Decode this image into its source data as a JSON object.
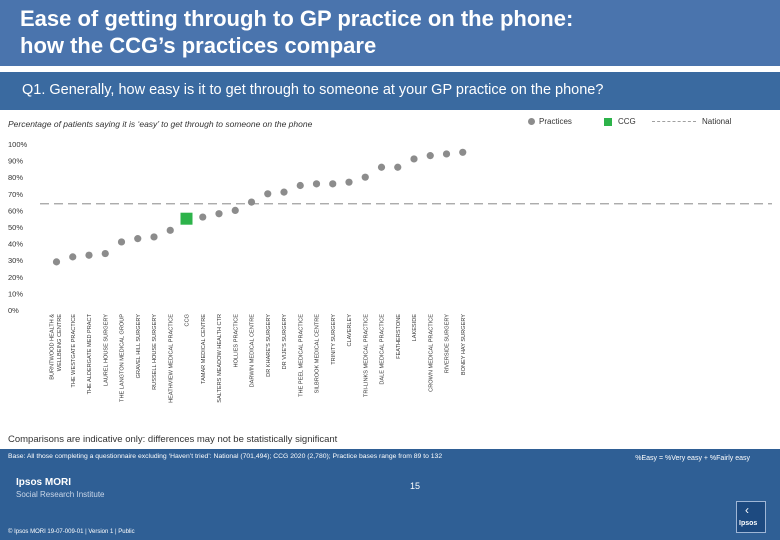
{
  "header": {
    "title": "Ease of getting through to GP practice on the phone:\nhow the CCG’s practices compare"
  },
  "question": "Q1. Generally, how easy is it to get through to someone at your GP practice on the phone?",
  "subtitle": "Percentage of patients saying it is ‘easy’ to get through to someone on the phone",
  "legend": {
    "practices": "Practices",
    "ccg": "CCG",
    "national": "National"
  },
  "chart_data": {
    "type": "scatter",
    "title": "Percentage of patients saying it is ‘easy’ to get through to someone on the phone",
    "y_tick_labels": [
      "0%",
      "10%",
      "20%",
      "30%",
      "40%",
      "50%",
      "60%",
      "70%",
      "80%",
      "90%",
      "100%"
    ],
    "ylim": [
      0,
      100
    ],
    "national_value": 64,
    "categories": [
      "BURNTWOOD HEALTH & WELLBEING CENTRE",
      "THE WESTGATE PRACTICE",
      "THE ALDERGATE MED PRACT",
      "LAUREL HOUSE SURGERY",
      "THE LANGTON MEDICAL GROUP",
      "GRAVEL HILL SURGERY",
      "RUSSELL HOUSE SURGERY",
      "HEATHVIEW MEDICAL PRACTICE",
      "CCG",
      "TAMAR MEDICAL CENTRE",
      "SALTERS MEADOW HEALTH CTR",
      "HOLLIES PRACTICE",
      "DARWIN MEDICAL CENTRE",
      "DR KHARE'S SURGERY",
      "DR VIJE'S SURGERY",
      "THE PEEL MEDICAL PRACTICE",
      "SILBROOK MEDICAL CENTRE",
      "TRINITY SURGERY",
      "CLAVERLEY",
      "TRI-LINKS MEDICAL PRACTICE",
      "DALE MEDICAL PRACTICE",
      "FEATHERSTONE",
      "LAKESIDE",
      "CROWN MEDICAL PRACTICE",
      "RIVERSIDE SURGERY",
      "BONEY HAY SURGERY"
    ],
    "values": [
      29,
      32,
      33,
      34,
      41,
      43,
      44,
      48,
      55,
      56,
      58,
      60,
      65,
      70,
      71,
      75,
      76,
      76,
      77,
      80,
      86,
      86,
      91,
      93,
      94,
      95
    ],
    "ccg_category": "CCG",
    "grid": false,
    "legend_position": "top-right"
  },
  "note": "Comparisons are indicative only: differences may not be statistically significant",
  "footer": {
    "base": "Base: All those completing a questionnaire excluding ‘Haven’t tried’: National (701,494); CCG 2020 (2,780); Practice bases range from 89 to 132",
    "formula": "%Easy = %Very easy + %Fairly easy",
    "page": "15",
    "brand_line1": "Ipsos MORI",
    "brand_line2": "Social Research Institute",
    "copyright": "© Ipsos MORI     19-07-009-01 | Version 1 | Public",
    "logo_text": "Ipsos"
  },
  "colors": {
    "header": "#4a74ad",
    "question_bar": "#3a6aa0",
    "practice_marker": "#8c8c8c",
    "ccg_marker": "#2db34a",
    "national_line": "#a0a0a0",
    "footer": "#2f5f95"
  }
}
